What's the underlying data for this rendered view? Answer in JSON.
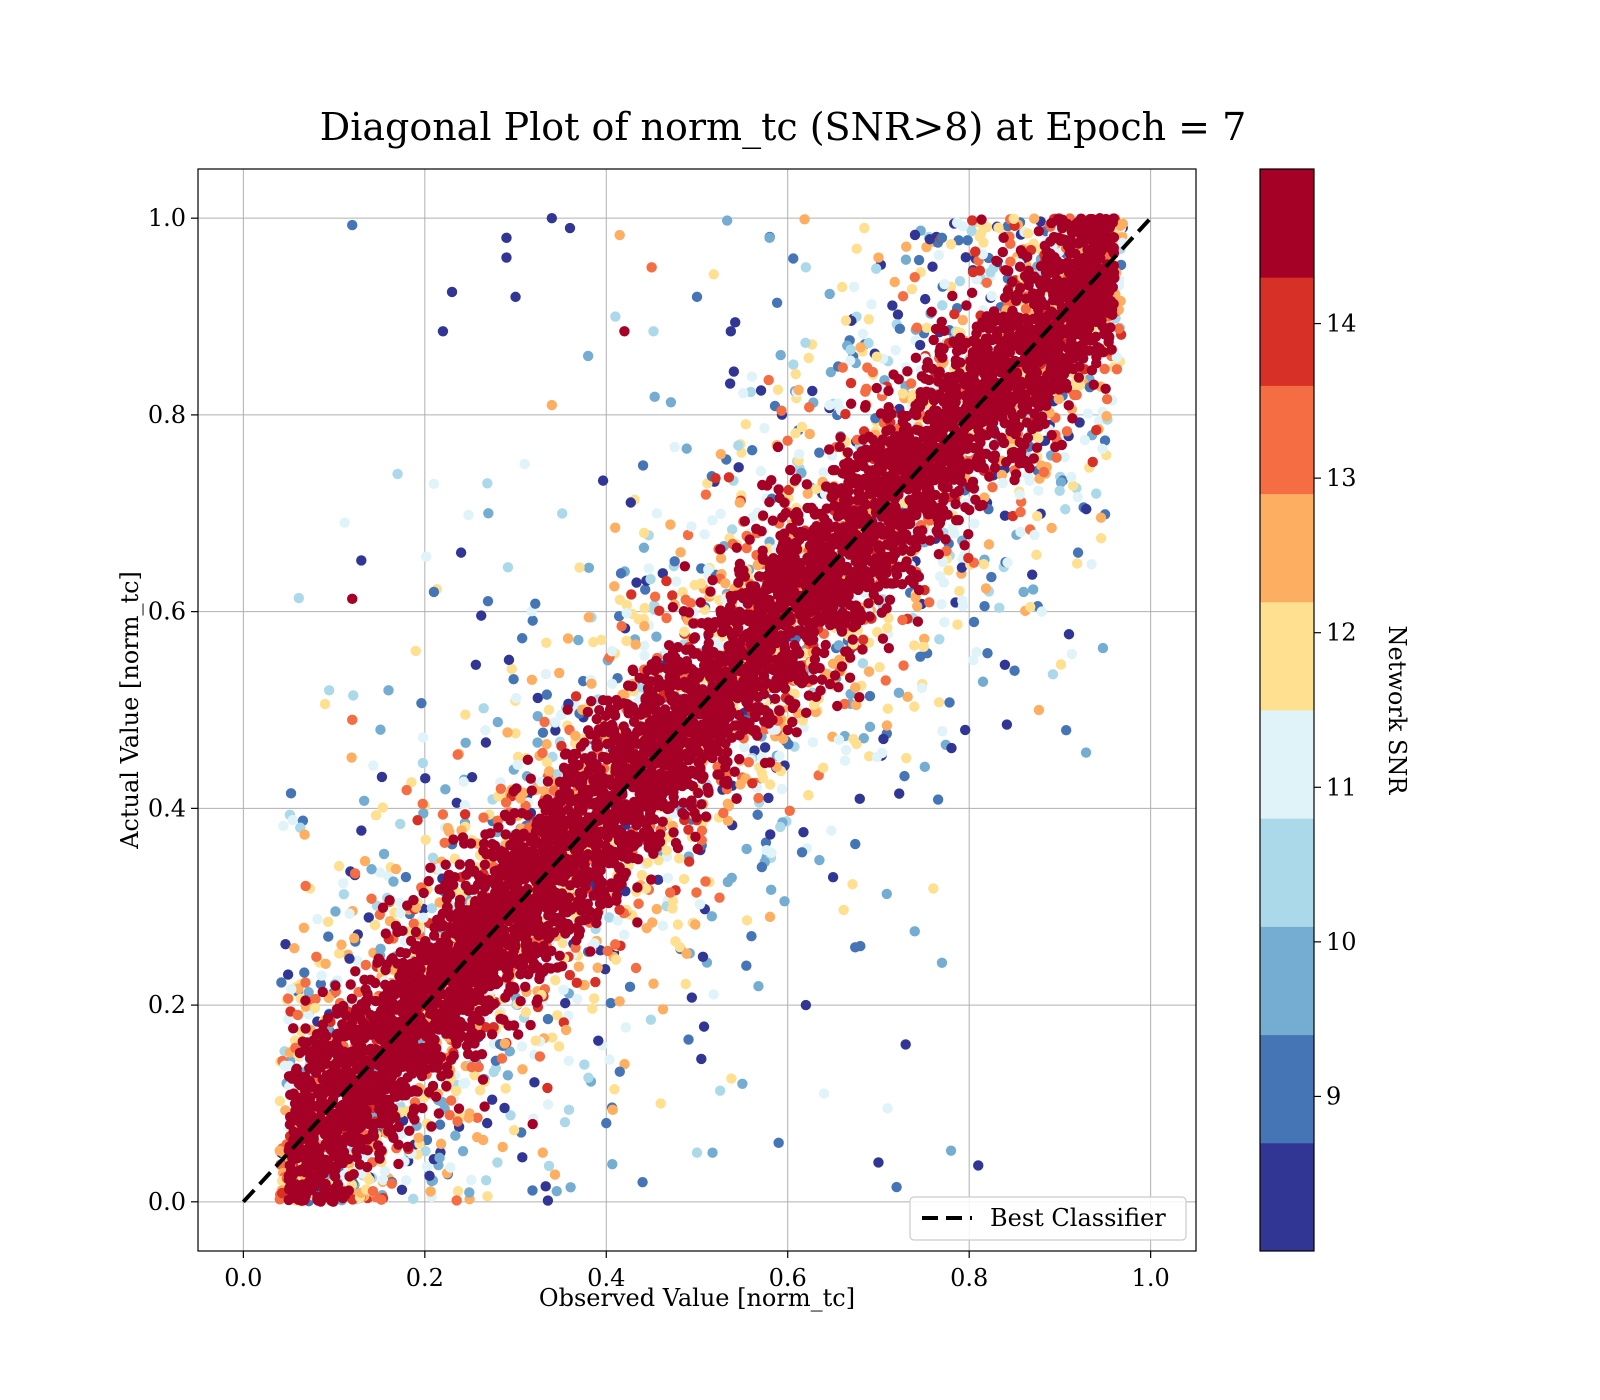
{
  "chart_data": {
    "type": "scatter",
    "title": "Diagonal Plot of norm_tc (SNR>8) at Epoch = 7",
    "xlabel": "Observed Value [norm_tc]",
    "ylabel": "Actual Value [norm_tc]",
    "xlim": [
      -0.05,
      1.05
    ],
    "ylim": [
      -0.05,
      1.05
    ],
    "xticks": [
      "0.0",
      "0.2",
      "0.4",
      "0.6",
      "0.8",
      "1.0"
    ],
    "yticks": [
      "0.0",
      "0.2",
      "0.4",
      "0.6",
      "0.8",
      "1.0"
    ],
    "grid": true,
    "legend": {
      "placement": "lower-right",
      "entries": [
        "Best Classifier"
      ]
    },
    "reference_line": {
      "name": "Best Classifier",
      "style": "dashed",
      "color": "#000000",
      "points": [
        [
          0,
          0
        ],
        [
          1,
          1
        ]
      ]
    },
    "colorbar": {
      "label": "Network SNR",
      "range": [
        8,
        15
      ],
      "ticks": [
        "9",
        "10",
        "11",
        "12",
        "13",
        "14"
      ],
      "colors": [
        "#313695",
        "#4575b4",
        "#74add1",
        "#abd9e9",
        "#e0f3f8",
        "#fee090",
        "#fdae61",
        "#f46d43",
        "#d73027",
        "#a50026"
      ]
    },
    "point_density": {
      "description_free": true,
      "core_band_snr": 14.5,
      "points": [
        [
          0.12,
          0.993,
          9.0
        ],
        [
          0.34,
          1.0,
          8.6
        ],
        [
          0.29,
          0.98,
          8.5
        ],
        [
          0.36,
          0.99,
          8.6
        ],
        [
          0.29,
          0.96,
          8.4
        ],
        [
          0.23,
          0.925,
          8.5
        ],
        [
          0.3,
          0.92,
          8.4
        ],
        [
          0.22,
          0.885,
          8.6
        ],
        [
          0.13,
          0.652,
          8.5
        ],
        [
          0.12,
          0.613,
          14.6
        ],
        [
          0.91,
          0.577,
          8.5
        ],
        [
          0.78,
          0.052,
          9.6
        ],
        [
          0.81,
          0.037,
          8.6
        ],
        [
          0.7,
          0.04,
          8.5
        ],
        [
          0.74,
          0.275,
          9.6
        ],
        [
          0.77,
          0.243,
          9.8
        ],
        [
          0.72,
          0.015,
          9.0
        ],
        [
          0.73,
          0.16,
          8.5
        ],
        [
          0.56,
          0.27,
          9.2
        ],
        [
          0.06,
          0.19,
          13.5
        ],
        [
          0.42,
          0.885,
          14.7
        ],
        [
          0.12,
          0.49,
          13.2
        ],
        [
          0.17,
          0.74,
          10.2
        ],
        [
          0.21,
          0.73,
          11.2
        ],
        [
          0.09,
          0.506,
          12.1
        ],
        [
          0.5,
          0.92,
          8.8
        ],
        [
          0.58,
          0.98,
          9.5
        ],
        [
          0.62,
          0.95,
          10.2
        ],
        [
          0.66,
          0.93,
          11.8
        ],
        [
          0.7,
          0.96,
          12.6
        ],
        [
          0.74,
          0.94,
          13.4
        ],
        [
          0.77,
          0.98,
          9.0
        ],
        [
          0.86,
          0.62,
          10.1
        ],
        [
          0.85,
          0.54,
          8.8
        ],
        [
          0.88,
          0.6,
          11.4
        ],
        [
          0.92,
          0.66,
          9.3
        ],
        [
          0.94,
          0.72,
          10.5
        ],
        [
          0.68,
          0.26,
          9.1
        ],
        [
          0.62,
          0.2,
          8.6
        ],
        [
          0.65,
          0.33,
          8.7
        ],
        [
          0.55,
          0.12,
          9.4
        ],
        [
          0.5,
          0.05,
          10.3
        ],
        [
          0.46,
          0.1,
          11.6
        ],
        [
          0.4,
          0.08,
          9.2
        ],
        [
          0.33,
          0.05,
          12.4
        ],
        [
          0.28,
          0.04,
          10.4
        ],
        [
          0.44,
          0.02,
          8.9
        ],
        [
          0.59,
          0.06,
          9.0
        ],
        [
          0.64,
          0.11,
          10.8
        ],
        [
          0.71,
          0.095,
          11.1
        ],
        [
          0.21,
          0.62,
          9.0
        ],
        [
          0.24,
          0.66,
          8.7
        ],
        [
          0.27,
          0.7,
          10.0
        ],
        [
          0.31,
          0.75,
          11.3
        ],
        [
          0.34,
          0.81,
          12.3
        ],
        [
          0.38,
          0.86,
          9.6
        ],
        [
          0.41,
          0.9,
          10.7
        ],
        [
          0.45,
          0.95,
          12.9
        ],
        [
          0.16,
          0.52,
          9.4
        ],
        [
          0.19,
          0.56,
          11.5
        ]
      ]
    }
  }
}
